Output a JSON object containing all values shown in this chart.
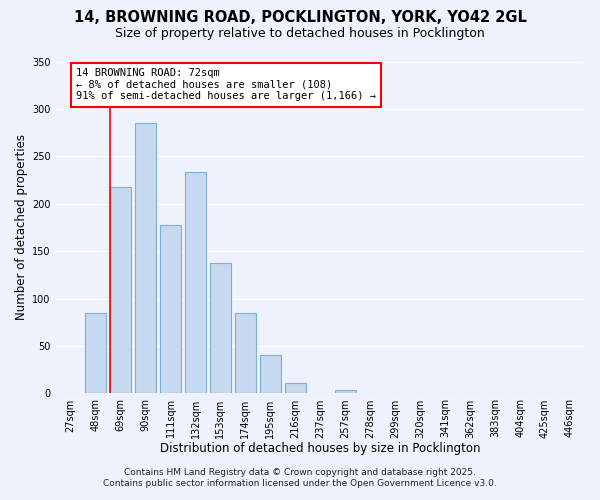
{
  "title": "14, BROWNING ROAD, POCKLINGTON, YORK, YO42 2GL",
  "subtitle": "Size of property relative to detached houses in Pocklington",
  "xlabel": "Distribution of detached houses by size in Pocklington",
  "ylabel": "Number of detached properties",
  "bar_labels": [
    "27sqm",
    "48sqm",
    "69sqm",
    "90sqm",
    "111sqm",
    "132sqm",
    "153sqm",
    "174sqm",
    "195sqm",
    "216sqm",
    "237sqm",
    "257sqm",
    "278sqm",
    "299sqm",
    "320sqm",
    "341sqm",
    "362sqm",
    "383sqm",
    "404sqm",
    "425sqm",
    "446sqm"
  ],
  "bar_values": [
    0,
    85,
    218,
    285,
    178,
    234,
    138,
    85,
    41,
    11,
    0,
    4,
    0,
    0,
    0,
    0,
    0,
    0,
    0,
    0,
    0
  ],
  "bar_color": "#c6d9f0",
  "bar_edge_color": "#7bafd4",
  "red_line_index": 2,
  "ylim": [
    0,
    350
  ],
  "yticks": [
    0,
    50,
    100,
    150,
    200,
    250,
    300,
    350
  ],
  "annotation_text": "14 BROWNING ROAD: 72sqm\n← 8% of detached houses are smaller (108)\n91% of semi-detached houses are larger (1,166) →",
  "annotation_box_color": "white",
  "annotation_box_edge_color": "red",
  "red_line_color": "red",
  "footnote1": "Contains HM Land Registry data © Crown copyright and database right 2025.",
  "footnote2": "Contains public sector information licensed under the Open Government Licence v3.0.",
  "bg_color": "#eef2fc",
  "grid_color": "white",
  "title_fontsize": 10.5,
  "subtitle_fontsize": 9,
  "axis_label_fontsize": 8.5,
  "tick_fontsize": 7,
  "annotation_fontsize": 7.5,
  "footnote_fontsize": 6.5
}
